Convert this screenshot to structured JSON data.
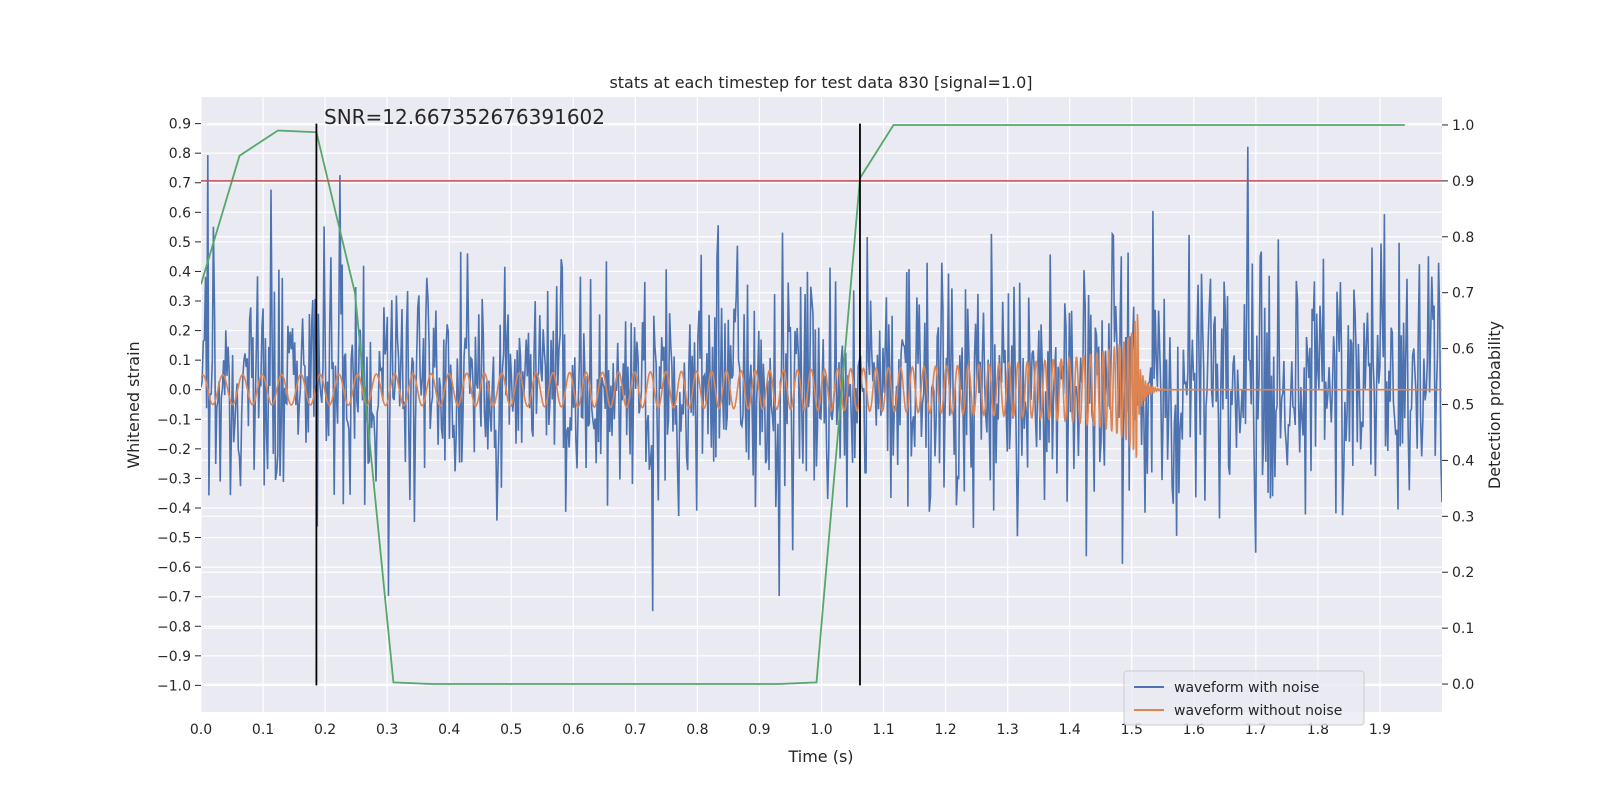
{
  "chart_data": {
    "type": "line",
    "title": "stats at each timestep for test data 830 [signal=1.0]",
    "xlabel": "Time (s)",
    "ylabel": "Whitened strain",
    "y2label": "Detection probability",
    "xlim": [
      0.0,
      2.0
    ],
    "ylim": [
      -1.09,
      0.99
    ],
    "y2lim": [
      -0.05,
      1.05
    ],
    "x_ticks": [
      "0.0",
      "0.1",
      "0.2",
      "0.3",
      "0.4",
      "0.5",
      "0.6",
      "0.7",
      "0.8",
      "0.9",
      "1.0",
      "1.1",
      "1.2",
      "1.3",
      "1.4",
      "1.5",
      "1.6",
      "1.7",
      "1.8",
      "1.9"
    ],
    "y_ticks": [
      "0.9",
      "0.8",
      "0.7",
      "0.6",
      "0.5",
      "0.4",
      "0.3",
      "0.2",
      "0.1",
      "0.0",
      "−0.1",
      "−0.2",
      "−0.3",
      "−0.4",
      "−0.5",
      "−0.6",
      "−0.7",
      "−0.8",
      "−0.9",
      "−1.0"
    ],
    "y2_ticks": [
      "1.0",
      "0.9",
      "0.8",
      "0.7",
      "0.6",
      "0.5",
      "0.4",
      "0.3",
      "0.2",
      "0.1",
      "0.0"
    ],
    "annotation": "SNR=12.667352676391602",
    "grid": true,
    "legend_position": "lower-right",
    "series": [
      {
        "name": "waveform with noise",
        "color": "#4c72b0",
        "axis": "left",
        "kind": "noise",
        "x_range": [
          0.0,
          2.0
        ],
        "y_range": [
          -1.0,
          0.9
        ]
      },
      {
        "name": "waveform without noise",
        "color": "#dd8452",
        "axis": "left",
        "kind": "chirp",
        "merger_time": 1.51,
        "amplitude_start": 0.05,
        "amplitude_peak": 0.35,
        "y_min_at_merger": -0.46
      },
      {
        "color": "#55a868",
        "axis": "right",
        "x": [
          0.0,
          0.062,
          0.124,
          0.186,
          0.248,
          0.31,
          0.372,
          0.434,
          0.62,
          0.93,
          0.992,
          1.062,
          1.116,
          1.24,
          1.55,
          1.86,
          1.94
        ],
        "y": [
          0.715,
          0.945,
          0.99,
          0.987,
          0.7,
          0.003,
          0.0,
          0.0,
          0.0,
          0.0,
          0.003,
          0.905,
          1.0,
          1.0,
          1.0,
          1.0,
          1.0
        ]
      }
    ],
    "hlines": [
      {
        "axis": "right",
        "y": 0.9,
        "color": "#c44e52"
      }
    ],
    "vlines": [
      {
        "x": 0.186,
        "y0": -1.0,
        "y1": 0.9,
        "color": "#000000"
      },
      {
        "x": 1.062,
        "y0": -1.0,
        "y1": 0.9,
        "color": "#000000"
      }
    ]
  }
}
